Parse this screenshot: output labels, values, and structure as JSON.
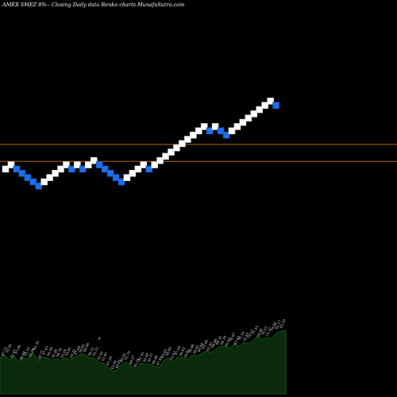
{
  "chart_data": {
    "type": "renko",
    "title": "AMEX SMEZ 8%-- Closing Daily data Renko charts MunafaSutra.com",
    "colors": {
      "up": "#ffffff",
      "down": "#1e6fe8",
      "reference_line": "#b5651d",
      "volume_fill": "#0b2a0b",
      "volume_line": "#1a5c1a"
    },
    "bricks": [
      {
        "i": 0,
        "d": "up",
        "level": 65
      },
      {
        "i": 1,
        "d": "up",
        "level": 66
      },
      {
        "i": 2,
        "d": "down",
        "level": 65
      },
      {
        "i": 3,
        "d": "down",
        "level": 64
      },
      {
        "i": 4,
        "d": "down",
        "level": 63
      },
      {
        "i": 5,
        "d": "down",
        "level": 62
      },
      {
        "i": 6,
        "d": "down",
        "level": 61
      },
      {
        "i": 7,
        "d": "up",
        "level": 62
      },
      {
        "i": 8,
        "d": "up",
        "level": 63
      },
      {
        "i": 9,
        "d": "up",
        "level": 64
      },
      {
        "i": 10,
        "d": "up",
        "level": 65
      },
      {
        "i": 11,
        "d": "up",
        "level": 66
      },
      {
        "i": 12,
        "d": "down",
        "level": 65
      },
      {
        "i": 13,
        "d": "up",
        "level": 66
      },
      {
        "i": 14,
        "d": "down",
        "level": 65
      },
      {
        "i": 15,
        "d": "up",
        "level": 66
      },
      {
        "i": 16,
        "d": "up",
        "level": 67
      },
      {
        "i": 17,
        "d": "down",
        "level": 66
      },
      {
        "i": 18,
        "d": "down",
        "level": 65
      },
      {
        "i": 19,
        "d": "down",
        "level": 64
      },
      {
        "i": 20,
        "d": "down",
        "level": 63
      },
      {
        "i": 21,
        "d": "down",
        "level": 62
      },
      {
        "i": 22,
        "d": "up",
        "level": 63
      },
      {
        "i": 23,
        "d": "up",
        "level": 64
      },
      {
        "i": 24,
        "d": "up",
        "level": 65
      },
      {
        "i": 25,
        "d": "up",
        "level": 66
      },
      {
        "i": 26,
        "d": "down",
        "level": 65
      },
      {
        "i": 27,
        "d": "up",
        "level": 66
      },
      {
        "i": 28,
        "d": "up",
        "level": 67
      },
      {
        "i": 29,
        "d": "up",
        "level": 68
      },
      {
        "i": 30,
        "d": "up",
        "level": 69
      },
      {
        "i": 31,
        "d": "up",
        "level": 70
      },
      {
        "i": 32,
        "d": "up",
        "level": 71
      },
      {
        "i": 33,
        "d": "up",
        "level": 72
      },
      {
        "i": 34,
        "d": "up",
        "level": 73
      },
      {
        "i": 35,
        "d": "up",
        "level": 74
      },
      {
        "i": 36,
        "d": "up",
        "level": 75
      },
      {
        "i": 37,
        "d": "down",
        "level": 74
      },
      {
        "i": 38,
        "d": "up",
        "level": 75
      },
      {
        "i": 39,
        "d": "down",
        "level": 74
      },
      {
        "i": 40,
        "d": "down",
        "level": 73
      },
      {
        "i": 41,
        "d": "up",
        "level": 74
      },
      {
        "i": 42,
        "d": "up",
        "level": 75
      },
      {
        "i": 43,
        "d": "up",
        "level": 76
      },
      {
        "i": 44,
        "d": "up",
        "level": 77
      },
      {
        "i": 45,
        "d": "up",
        "level": 78
      },
      {
        "i": 46,
        "d": "up",
        "level": 79
      },
      {
        "i": 47,
        "d": "up",
        "level": 80
      },
      {
        "i": 48,
        "d": "up",
        "level": 81
      },
      {
        "i": 49,
        "d": "down",
        "level": 80
      }
    ],
    "reference_lines": [
      71,
      67
    ],
    "volume_labels": [
      "47.73",
      "55.59",
      "51.47",
      "57.06",
      "50.44",
      "55.53",
      "52.56",
      "61.35",
      "50.77",
      "57.43",
      "56.59",
      "52.26",
      "54.78",
      "53.18",
      "55.81",
      "53.32",
      "57.04",
      "58.82",
      "60.06",
      "56.21",
      "55.52",
      "52.41",
      "51.87",
      "47.26",
      "43.38",
      "44.65",
      "50.92",
      "51.79",
      "48.27",
      "45.14",
      "51.33",
      "50.94",
      "50.37",
      "48.98",
      "47.82",
      "55.43",
      "56.89",
      "53.97",
      "57.09",
      "56.82",
      "54.81",
      "59.66",
      "58.42",
      "60.84",
      "63.48",
      "61.87",
      "64.68",
      "68.31",
      "68.18",
      "66.43",
      "70.67",
      "67.42",
      "71.19",
      "70.83",
      "73.57",
      "77.12",
      "74.96",
      "76.12",
      "75.57",
      "79.94",
      "82.17",
      "82.23"
    ],
    "volume_values": [
      24,
      27,
      22,
      26,
      20,
      24,
      23,
      30,
      21,
      25,
      24,
      22,
      23,
      22,
      24,
      22,
      25,
      27,
      28,
      24,
      24,
      20,
      19,
      15,
      11,
      12,
      18,
      20,
      16,
      13,
      19,
      18,
      18,
      16,
      15,
      22,
      24,
      20,
      25,
      24,
      22,
      27,
      26,
      28,
      31,
      29,
      32,
      35,
      35,
      33,
      38,
      35,
      39,
      38,
      41,
      45,
      42,
      44,
      43,
      48,
      50,
      51
    ],
    "volume_markers": [
      {
        "i": 21,
        "label": "4"
      }
    ]
  }
}
